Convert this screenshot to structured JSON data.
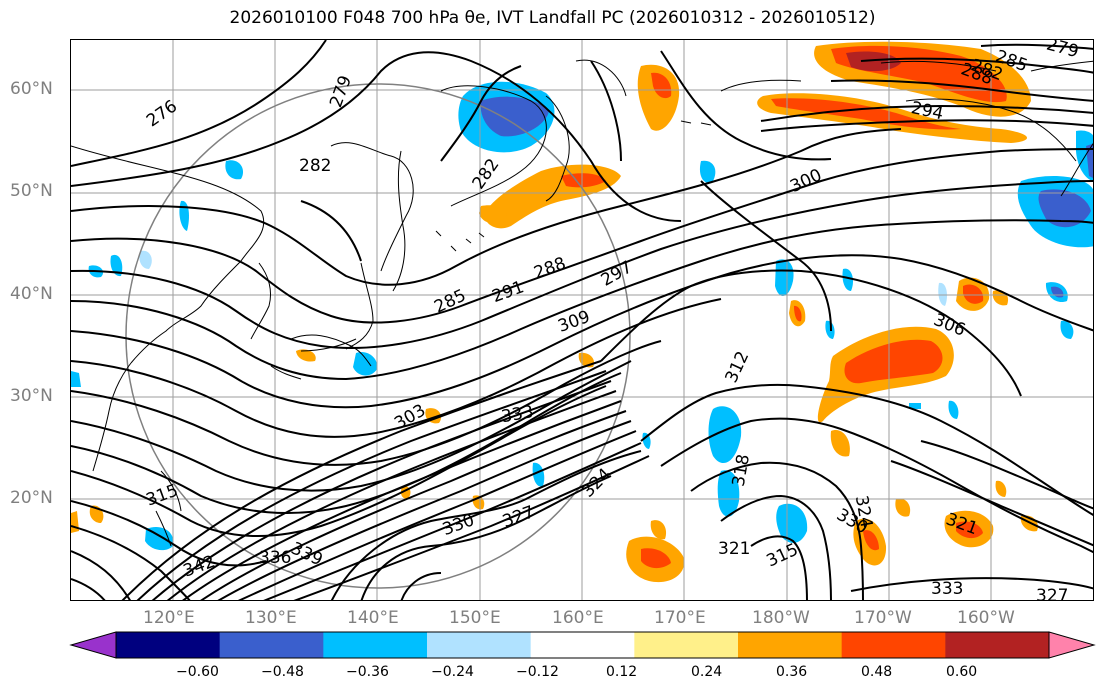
{
  "title": "2026010100 F048 700 hPa θe, IVT Landfall PC (2026010312 - 2026010512)",
  "map": {
    "projection": "lat-lon",
    "lat_labels": [
      "60°N",
      "50°N",
      "40°N",
      "30°N",
      "20°N"
    ],
    "lon_labels": [
      "120°E",
      "130°E",
      "140°E",
      "150°E",
      "160°E",
      "170°E",
      "180°W",
      "170°W",
      "160°W"
    ],
    "gridlines": true,
    "contour_field": "700 hPa theta-e (K)",
    "contour_labels": [
      "276",
      "279",
      "282",
      "282",
      "285",
      "288",
      "291",
      "294",
      "297",
      "300",
      "303",
      "306",
      "309",
      "312",
      "315",
      "315",
      "318",
      "321",
      "321",
      "324",
      "324",
      "327",
      "327",
      "330",
      "330",
      "333",
      "333",
      "336",
      "339",
      "342",
      "282",
      "285",
      "288",
      "279"
    ],
    "shaded_field": "IVT Landfall PC"
  },
  "colorbar": {
    "ticks": [
      "−0.60",
      "−0.48",
      "−0.36",
      "−0.24",
      "−0.12",
      "0.12",
      "0.24",
      "0.36",
      "0.48",
      "0.60"
    ],
    "colors": [
      "#9932cc",
      "#00007f",
      "#3a5fcd",
      "#00bfff",
      "#b0e2ff",
      "#ffffff",
      "#fff08a",
      "#ffa500",
      "#ff4500",
      "#b22222",
      "#ff82ab"
    ],
    "extend": "both"
  },
  "colors": {
    "coastline": "#000000",
    "contour": "#000000",
    "grid": "#9e9e9e",
    "circle": "#808080",
    "axis_text": "#7f7f7f"
  }
}
